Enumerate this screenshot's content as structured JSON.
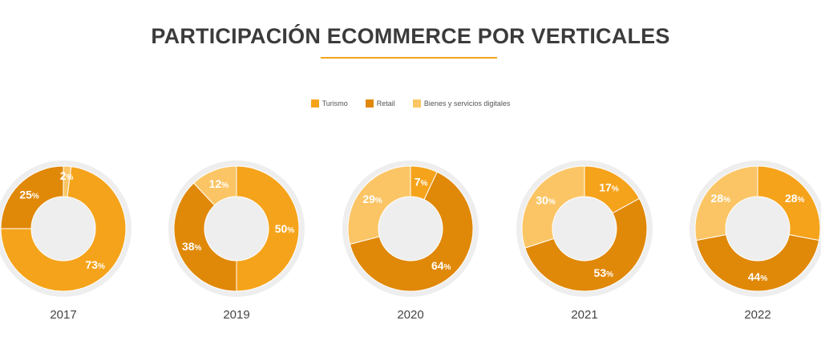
{
  "chart_data": {
    "type": "pie",
    "title": "PARTICIPACIÓN ECOMMERCE POR VERTICALES",
    "legend_position": "top-center",
    "series": [
      {
        "name": "Turismo",
        "color": "#f5a31b"
      },
      {
        "name": "Retail",
        "color": "#e08808"
      },
      {
        "name": "Bienes y servicios digitales",
        "color": "#fbc565"
      }
    ],
    "charts": [
      {
        "year": "2017",
        "slices": [
          {
            "series": "Turismo",
            "value": 73
          },
          {
            "series": "Retail",
            "value": 25
          },
          {
            "series": "Bienes y servicios digitales",
            "value": 2
          }
        ]
      },
      {
        "year": "2019",
        "slices": [
          {
            "series": "Turismo",
            "value": 50
          },
          {
            "series": "Retail",
            "value": 38
          },
          {
            "series": "Bienes y servicios digitales",
            "value": 12
          }
        ]
      },
      {
        "year": "2020",
        "slices": [
          {
            "series": "Turismo",
            "value": 7
          },
          {
            "series": "Retail",
            "value": 64
          },
          {
            "series": "Bienes y servicios digitales",
            "value": 29
          }
        ]
      },
      {
        "year": "2021",
        "slices": [
          {
            "series": "Turismo",
            "value": 17
          },
          {
            "series": "Retail",
            "value": 53
          },
          {
            "series": "Bienes y servicios digitales",
            "value": 30
          }
        ]
      },
      {
        "year": "2022",
        "slices": [
          {
            "series": "Turismo",
            "value": 28
          },
          {
            "series": "Retail",
            "value": 44
          },
          {
            "series": "Bienes y servicios digitales",
            "value": 28
          }
        ]
      }
    ]
  }
}
